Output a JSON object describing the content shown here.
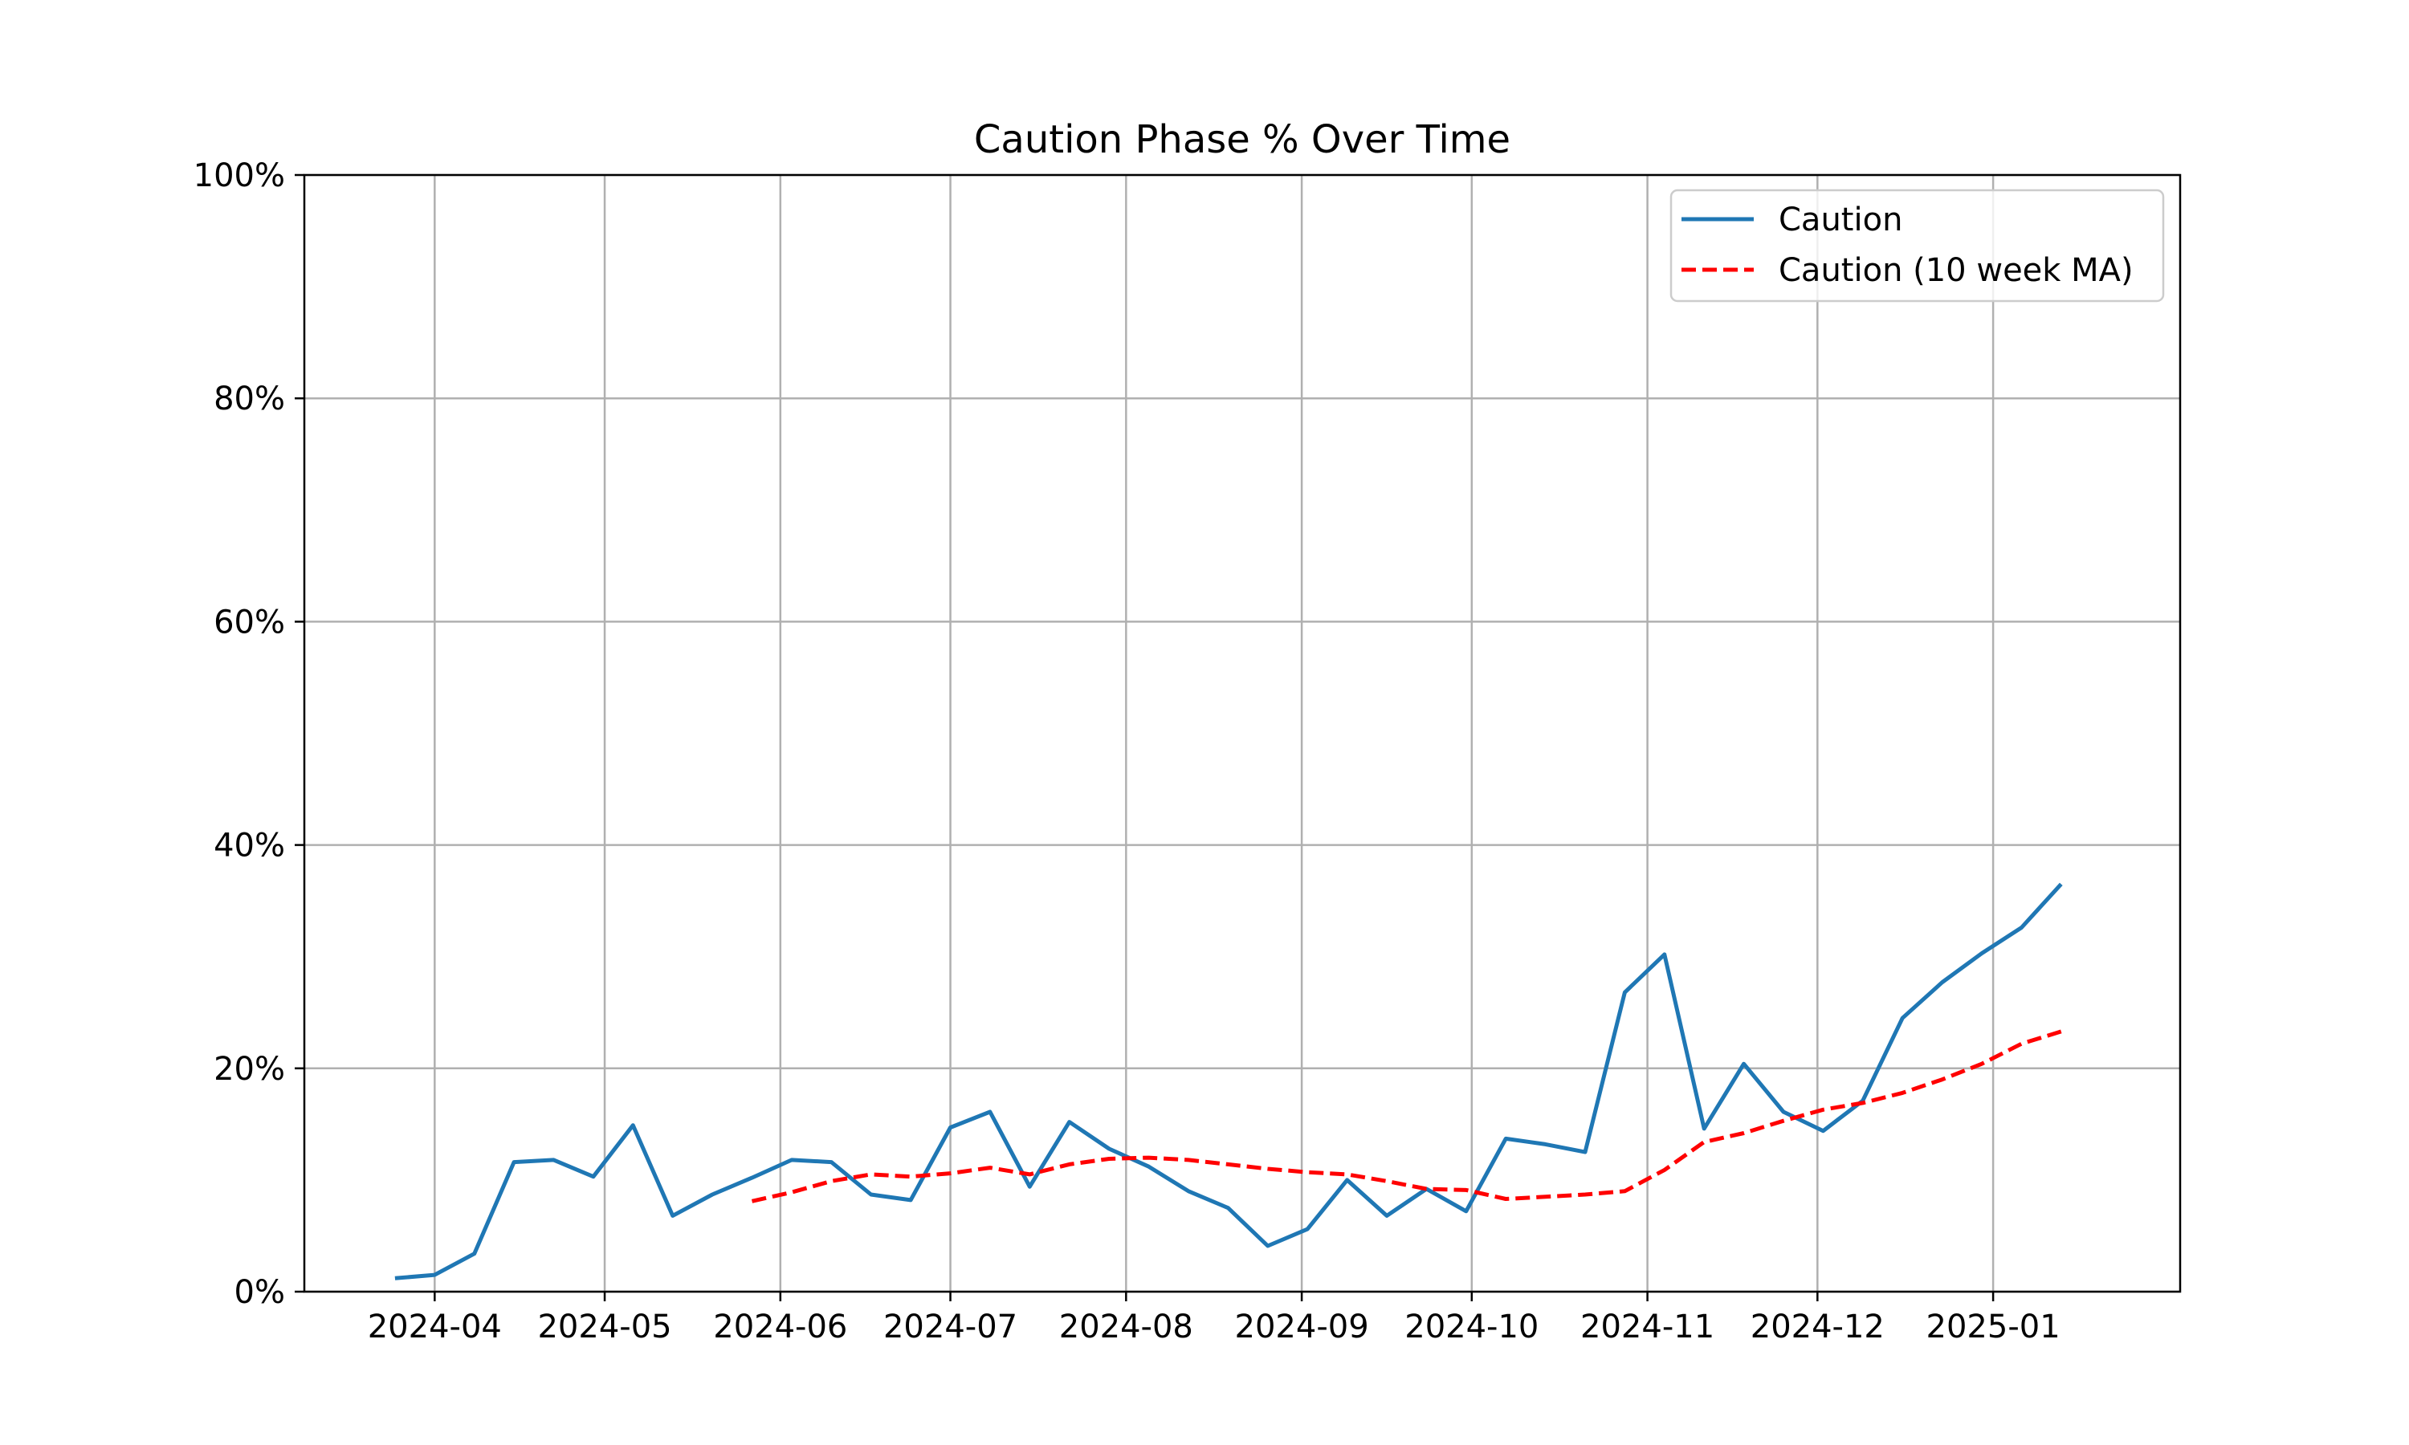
{
  "chart_data": {
    "type": "line",
    "title": "Caution Phase % Over Time",
    "xlabel": "",
    "ylabel": "",
    "ylim": [
      0,
      100
    ],
    "xlim": [
      "2024-03-09",
      "2025-02-03"
    ],
    "grid": true,
    "legend_position": "top-right",
    "y_ticks": [
      {
        "value": 0,
        "label": "0%"
      },
      {
        "value": 20,
        "label": "20%"
      },
      {
        "value": 40,
        "label": "40%"
      },
      {
        "value": 60,
        "label": "60%"
      },
      {
        "value": 80,
        "label": "80%"
      },
      {
        "value": 100,
        "label": "100%"
      }
    ],
    "x_ticks": [
      {
        "value": "2024-04-01",
        "label": "2024-04"
      },
      {
        "value": "2024-05-01",
        "label": "2024-05"
      },
      {
        "value": "2024-06-01",
        "label": "2024-06"
      },
      {
        "value": "2024-07-01",
        "label": "2024-07"
      },
      {
        "value": "2024-08-01",
        "label": "2024-08"
      },
      {
        "value": "2024-09-01",
        "label": "2024-09"
      },
      {
        "value": "2024-10-01",
        "label": "2024-10"
      },
      {
        "value": "2024-11-01",
        "label": "2024-11"
      },
      {
        "value": "2024-12-01",
        "label": "2024-12"
      },
      {
        "value": "2025-01-01",
        "label": "2025-01"
      }
    ],
    "series": [
      {
        "name": "Caution",
        "color": "#1f77b4",
        "style": "solid",
        "x": [
          "2024-03-25",
          "2024-04-01",
          "2024-04-08",
          "2024-04-15",
          "2024-04-22",
          "2024-04-29",
          "2024-05-06",
          "2024-05-13",
          "2024-05-20",
          "2024-05-27",
          "2024-06-03",
          "2024-06-10",
          "2024-06-17",
          "2024-06-24",
          "2024-07-01",
          "2024-07-08",
          "2024-07-15",
          "2024-07-22",
          "2024-07-29",
          "2024-08-05",
          "2024-08-12",
          "2024-08-19",
          "2024-08-26",
          "2024-09-02",
          "2024-09-09",
          "2024-09-16",
          "2024-09-23",
          "2024-09-30",
          "2024-10-07",
          "2024-10-14",
          "2024-10-21",
          "2024-10-28",
          "2024-11-04",
          "2024-11-11",
          "2024-11-18",
          "2024-11-25",
          "2024-12-02",
          "2024-12-09",
          "2024-12-16",
          "2024-12-23",
          "2024-12-30",
          "2025-01-06",
          "2025-01-13"
        ],
        "y": [
          1.2,
          1.5,
          3.4,
          11.6,
          11.8,
          10.3,
          14.9,
          6.8,
          8.7,
          10.2,
          11.8,
          11.6,
          8.7,
          8.2,
          14.7,
          16.1,
          9.4,
          15.2,
          12.8,
          11.2,
          9.0,
          7.5,
          4.1,
          5.6,
          10.0,
          6.8,
          9.2,
          7.2,
          13.7,
          13.2,
          12.5,
          26.8,
          30.2,
          14.6,
          20.4,
          16.1,
          14.4,
          17.1,
          24.5,
          27.7,
          30.3,
          32.6,
          36.5
        ]
      },
      {
        "name": "Caution (10 week MA)",
        "color": "#ff0000",
        "style": "dashed",
        "x": [
          "2024-05-27",
          "2024-06-03",
          "2024-06-10",
          "2024-06-17",
          "2024-06-24",
          "2024-07-01",
          "2024-07-08",
          "2024-07-15",
          "2024-07-22",
          "2024-07-29",
          "2024-08-05",
          "2024-08-12",
          "2024-08-19",
          "2024-08-26",
          "2024-09-02",
          "2024-09-09",
          "2024-09-16",
          "2024-09-23",
          "2024-09-30",
          "2024-10-07",
          "2024-10-14",
          "2024-10-21",
          "2024-10-28",
          "2024-11-04",
          "2024-11-11",
          "2024-11-18",
          "2024-11-25",
          "2024-12-02",
          "2024-12-09",
          "2024-12-16",
          "2024-12-23",
          "2024-12-30",
          "2025-01-06",
          "2025-01-13"
        ],
        "y": [
          8.1,
          8.9,
          9.9,
          10.5,
          10.3,
          10.6,
          11.1,
          10.5,
          11.4,
          11.9,
          12.0,
          11.8,
          11.4,
          11.0,
          10.7,
          10.5,
          9.9,
          9.2,
          9.1,
          8.3,
          8.5,
          8.7,
          9.0,
          10.9,
          13.4,
          14.2,
          15.3,
          16.3,
          16.9,
          17.8,
          19.0,
          20.4,
          22.2,
          23.3
        ]
      }
    ]
  }
}
